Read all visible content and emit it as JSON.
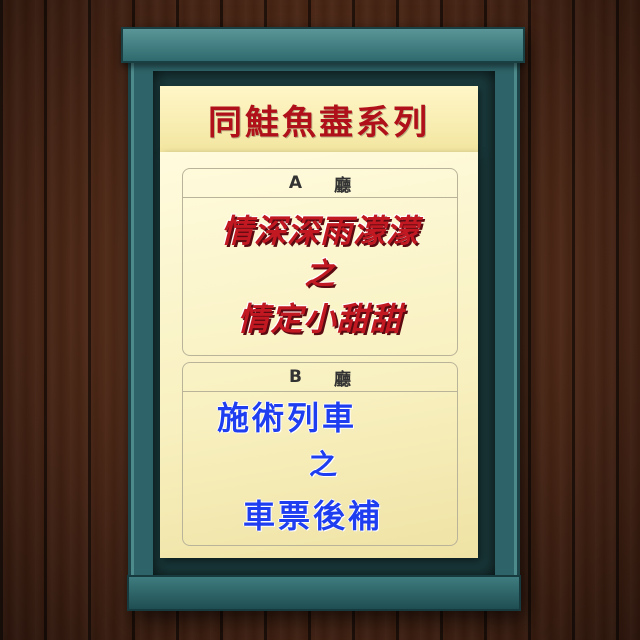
{
  "header": {
    "title": "同鮭魚盡系列"
  },
  "halls": [
    {
      "letter": "A",
      "label": "廳",
      "lines": [
        "情深深雨濛濛",
        "之",
        "情定小甜甜"
      ]
    },
    {
      "letter": "B",
      "label": "廳",
      "lines": [
        "施術列車",
        "之",
        "車票後補"
      ]
    }
  ],
  "colors": {
    "frame": "#2e6469",
    "header_text": "#b0101a",
    "hall_a_text": "#c21822",
    "hall_b_text": "#1f3ef0",
    "paper": "#fbf3c8"
  }
}
